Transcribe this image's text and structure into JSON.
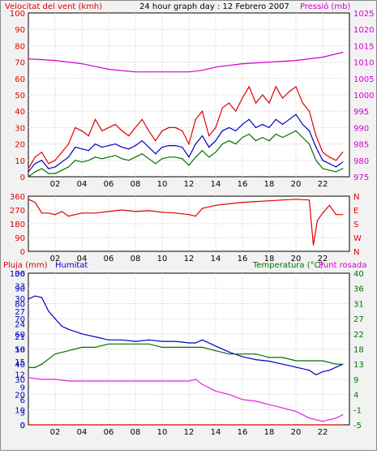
{
  "header": {
    "title": "24 hour graph day : 12 Febrero 2007",
    "left_label": "Velocitat del vent (kmh)",
    "right_label": "Pressió (mb)"
  },
  "bottom_header": {
    "left_label_1": "Pluja (mm)",
    "left_label_2": "Humitat",
    "right_label_1": "Temperatura (°C)",
    "right_label_2": "Punt rosada"
  },
  "colors": {
    "wind_speed": "#e00000",
    "wind_avg": "#0000c0",
    "wind_low": "#007000",
    "pressure": "#d000d0",
    "direction": "#e00000",
    "humidity": "#0000c0",
    "temperature": "#007000",
    "dewpoint": "#e020e0",
    "rain": "#e00000"
  },
  "chart_data": [
    {
      "type": "line",
      "x_ticks": [
        "02",
        "04",
        "06",
        "08",
        "10",
        "12",
        "14",
        "16",
        "18",
        "20",
        "22"
      ],
      "x_range": [
        0,
        24
      ],
      "y_left_ticks": [
        "0",
        "10",
        "20",
        "30",
        "40",
        "50",
        "60",
        "70",
        "80",
        "90",
        "100"
      ],
      "y_left_range": [
        0,
        100
      ],
      "y_right_ticks": [
        "975",
        "980",
        "985",
        "990",
        "995",
        "1000",
        "1005",
        "1010",
        "1015",
        "1020",
        "1025"
      ],
      "y_right_range": [
        975,
        1025
      ],
      "grid": true,
      "series": [
        {
          "key": "wind_speed",
          "axis": "left",
          "x": [
            0,
            0.5,
            1,
            1.5,
            2,
            2.5,
            3,
            3.5,
            4,
            4.5,
            5,
            5.5,
            6,
            6.5,
            7,
            7.5,
            8,
            8.5,
            9,
            9.5,
            10,
            10.5,
            11,
            11.5,
            12,
            12.5,
            13,
            13.5,
            14,
            14.5,
            15,
            15.5,
            16,
            16.5,
            17,
            17.5,
            18,
            18.5,
            19,
            19.5,
            20,
            20.5,
            21,
            21.5,
            22,
            22.5,
            23,
            23.5
          ],
          "values": [
            5,
            12,
            15,
            8,
            10,
            15,
            20,
            30,
            28,
            25,
            35,
            28,
            30,
            32,
            28,
            25,
            30,
            35,
            28,
            22,
            28,
            30,
            30,
            28,
            20,
            35,
            40,
            25,
            30,
            42,
            45,
            40,
            48,
            55,
            45,
            50,
            45,
            55,
            48,
            52,
            55,
            45,
            40,
            25,
            15,
            12,
            10,
            15
          ]
        },
        {
          "key": "wind_avg",
          "axis": "left",
          "x": [
            0,
            0.5,
            1,
            1.5,
            2,
            2.5,
            3,
            3.5,
            4,
            4.5,
            5,
            5.5,
            6,
            6.5,
            7,
            7.5,
            8,
            8.5,
            9,
            9.5,
            10,
            10.5,
            11,
            11.5,
            12,
            12.5,
            13,
            13.5,
            14,
            14.5,
            15,
            15.5,
            16,
            16.5,
            17,
            17.5,
            18,
            18.5,
            19,
            19.5,
            20,
            20.5,
            21,
            21.5,
            22,
            22.5,
            23,
            23.5
          ],
          "values": [
            3,
            8,
            10,
            5,
            6,
            9,
            12,
            18,
            17,
            16,
            20,
            18,
            19,
            20,
            18,
            17,
            19,
            22,
            18,
            14,
            18,
            19,
            19,
            18,
            12,
            20,
            25,
            18,
            22,
            28,
            30,
            28,
            32,
            35,
            30,
            32,
            30,
            35,
            32,
            35,
            38,
            32,
            28,
            18,
            10,
            8,
            6,
            9
          ]
        },
        {
          "key": "wind_low",
          "axis": "left",
          "x": [
            0,
            0.5,
            1,
            1.5,
            2,
            2.5,
            3,
            3.5,
            4,
            4.5,
            5,
            5.5,
            6,
            6.5,
            7,
            7.5,
            8,
            8.5,
            9,
            9.5,
            10,
            10.5,
            11,
            11.5,
            12,
            12.5,
            13,
            13.5,
            14,
            14.5,
            15,
            15.5,
            16,
            16.5,
            17,
            17.5,
            18,
            18.5,
            19,
            19.5,
            20,
            20.5,
            21,
            21.5,
            22,
            22.5,
            23,
            23.5
          ],
          "values": [
            0,
            3,
            5,
            2,
            2,
            4,
            6,
            10,
            9,
            10,
            12,
            11,
            12,
            13,
            11,
            10,
            12,
            14,
            11,
            8,
            11,
            12,
            12,
            11,
            7,
            12,
            16,
            12,
            15,
            20,
            22,
            20,
            24,
            26,
            22,
            24,
            22,
            26,
            24,
            26,
            28,
            24,
            20,
            10,
            5,
            4,
            3,
            5
          ]
        },
        {
          "key": "pressure",
          "axis": "right",
          "x": [
            0,
            2,
            4,
            6,
            8,
            10,
            12,
            13,
            14,
            16,
            18,
            20,
            22,
            23.5
          ],
          "values": [
            1011,
            1010.5,
            1009.5,
            1007.8,
            1007,
            1007,
            1007,
            1007.5,
            1008.5,
            1009.5,
            1010,
            1010.5,
            1011.5,
            1013
          ]
        }
      ]
    },
    {
      "type": "line",
      "x_ticks": [
        "02",
        "04",
        "06",
        "08",
        "10",
        "12",
        "14",
        "16",
        "18",
        "20",
        "22"
      ],
      "x_range": [
        0,
        24
      ],
      "y_left_ticks": [
        "0",
        "90",
        "180",
        "270",
        "360"
      ],
      "y_left_range": [
        0,
        360
      ],
      "y_right_ticks": [
        "N",
        "W",
        "S",
        "E",
        "N"
      ],
      "grid": true,
      "series": [
        {
          "key": "direction",
          "axis": "left",
          "x": [
            0,
            0.5,
            1,
            1.5,
            2,
            2.5,
            3,
            4,
            5,
            6,
            7,
            8,
            9,
            10,
            11,
            12,
            12.5,
            13,
            14,
            15,
            16,
            17,
            18,
            19,
            20,
            21,
            21.3,
            21.6,
            22,
            22.5,
            23,
            23.5
          ],
          "values": [
            340,
            320,
            250,
            250,
            240,
            260,
            230,
            250,
            250,
            260,
            270,
            260,
            265,
            255,
            250,
            240,
            230,
            280,
            300,
            310,
            320,
            325,
            330,
            335,
            340,
            335,
            40,
            200,
            250,
            300,
            240,
            240
          ]
        }
      ]
    },
    {
      "type": "line",
      "x_ticks": [
        "02",
        "04",
        "06",
        "08",
        "10",
        "12",
        "14",
        "16",
        "18",
        "20",
        "22"
      ],
      "x_range": [
        0,
        24
      ],
      "y_left_ticks": [
        "0",
        "10",
        "20",
        "30",
        "40",
        "50",
        "60",
        "70",
        "80",
        "90",
        "100"
      ],
      "y_left2_ticks": [
        "0",
        "3",
        "6",
        "9",
        "12",
        "15",
        "18",
        "21",
        "24",
        "27",
        "30",
        "33",
        "36"
      ],
      "y_left_range": [
        0,
        100
      ],
      "y_right_ticks": [
        "-5",
        "-1",
        "4",
        "9",
        "13",
        "18",
        "22",
        "27",
        "31",
        "36",
        "40"
      ],
      "y_right_range": [
        -5,
        40
      ],
      "grid": true,
      "series": [
        {
          "key": "humidity",
          "axis": "left",
          "x": [
            0,
            0.5,
            1,
            1.5,
            2,
            2.5,
            3,
            4,
            5,
            6,
            7,
            8,
            9,
            10,
            11,
            12,
            12.5,
            13,
            14,
            15,
            16,
            17,
            18,
            19,
            20,
            21,
            21.5,
            22,
            22.5,
            23,
            23.5
          ],
          "values": [
            83,
            85,
            84,
            75,
            70,
            65,
            63,
            60,
            58,
            56,
            56,
            55,
            56,
            55,
            55,
            54,
            54,
            56,
            52,
            48,
            45,
            43,
            42,
            40,
            38,
            36,
            33,
            35,
            36,
            38,
            40
          ]
        },
        {
          "key": "temperature",
          "axis": "right",
          "x": [
            0,
            0.5,
            1,
            2,
            3,
            4,
            5,
            6,
            7,
            8,
            9,
            10,
            11,
            12,
            13,
            14,
            15,
            16,
            17,
            18,
            19,
            20,
            21,
            22,
            23,
            23.5
          ],
          "values": [
            12,
            12,
            13,
            16,
            17,
            18,
            18,
            19,
            19,
            19,
            19,
            18,
            18,
            18,
            18,
            17,
            16,
            16,
            16,
            15,
            15,
            14,
            14,
            14,
            13,
            13
          ]
        },
        {
          "key": "dewpoint",
          "axis": "right",
          "x": [
            0,
            1,
            2,
            3,
            4,
            5,
            6,
            7,
            8,
            9,
            10,
            11,
            12,
            12.5,
            13,
            14,
            15,
            16,
            17,
            18,
            19,
            20,
            21,
            22,
            23,
            23.5
          ],
          "values": [
            9,
            8.5,
            8.5,
            8,
            8,
            8,
            8,
            8,
            8,
            8,
            8,
            8,
            8,
            8.5,
            7,
            5,
            4,
            2.5,
            2,
            1,
            0,
            -1,
            -3,
            -4,
            -3,
            -2
          ]
        },
        {
          "key": "rain",
          "axis": "left",
          "x": [
            0,
            23.5
          ],
          "values": [
            0,
            0
          ]
        }
      ]
    }
  ]
}
